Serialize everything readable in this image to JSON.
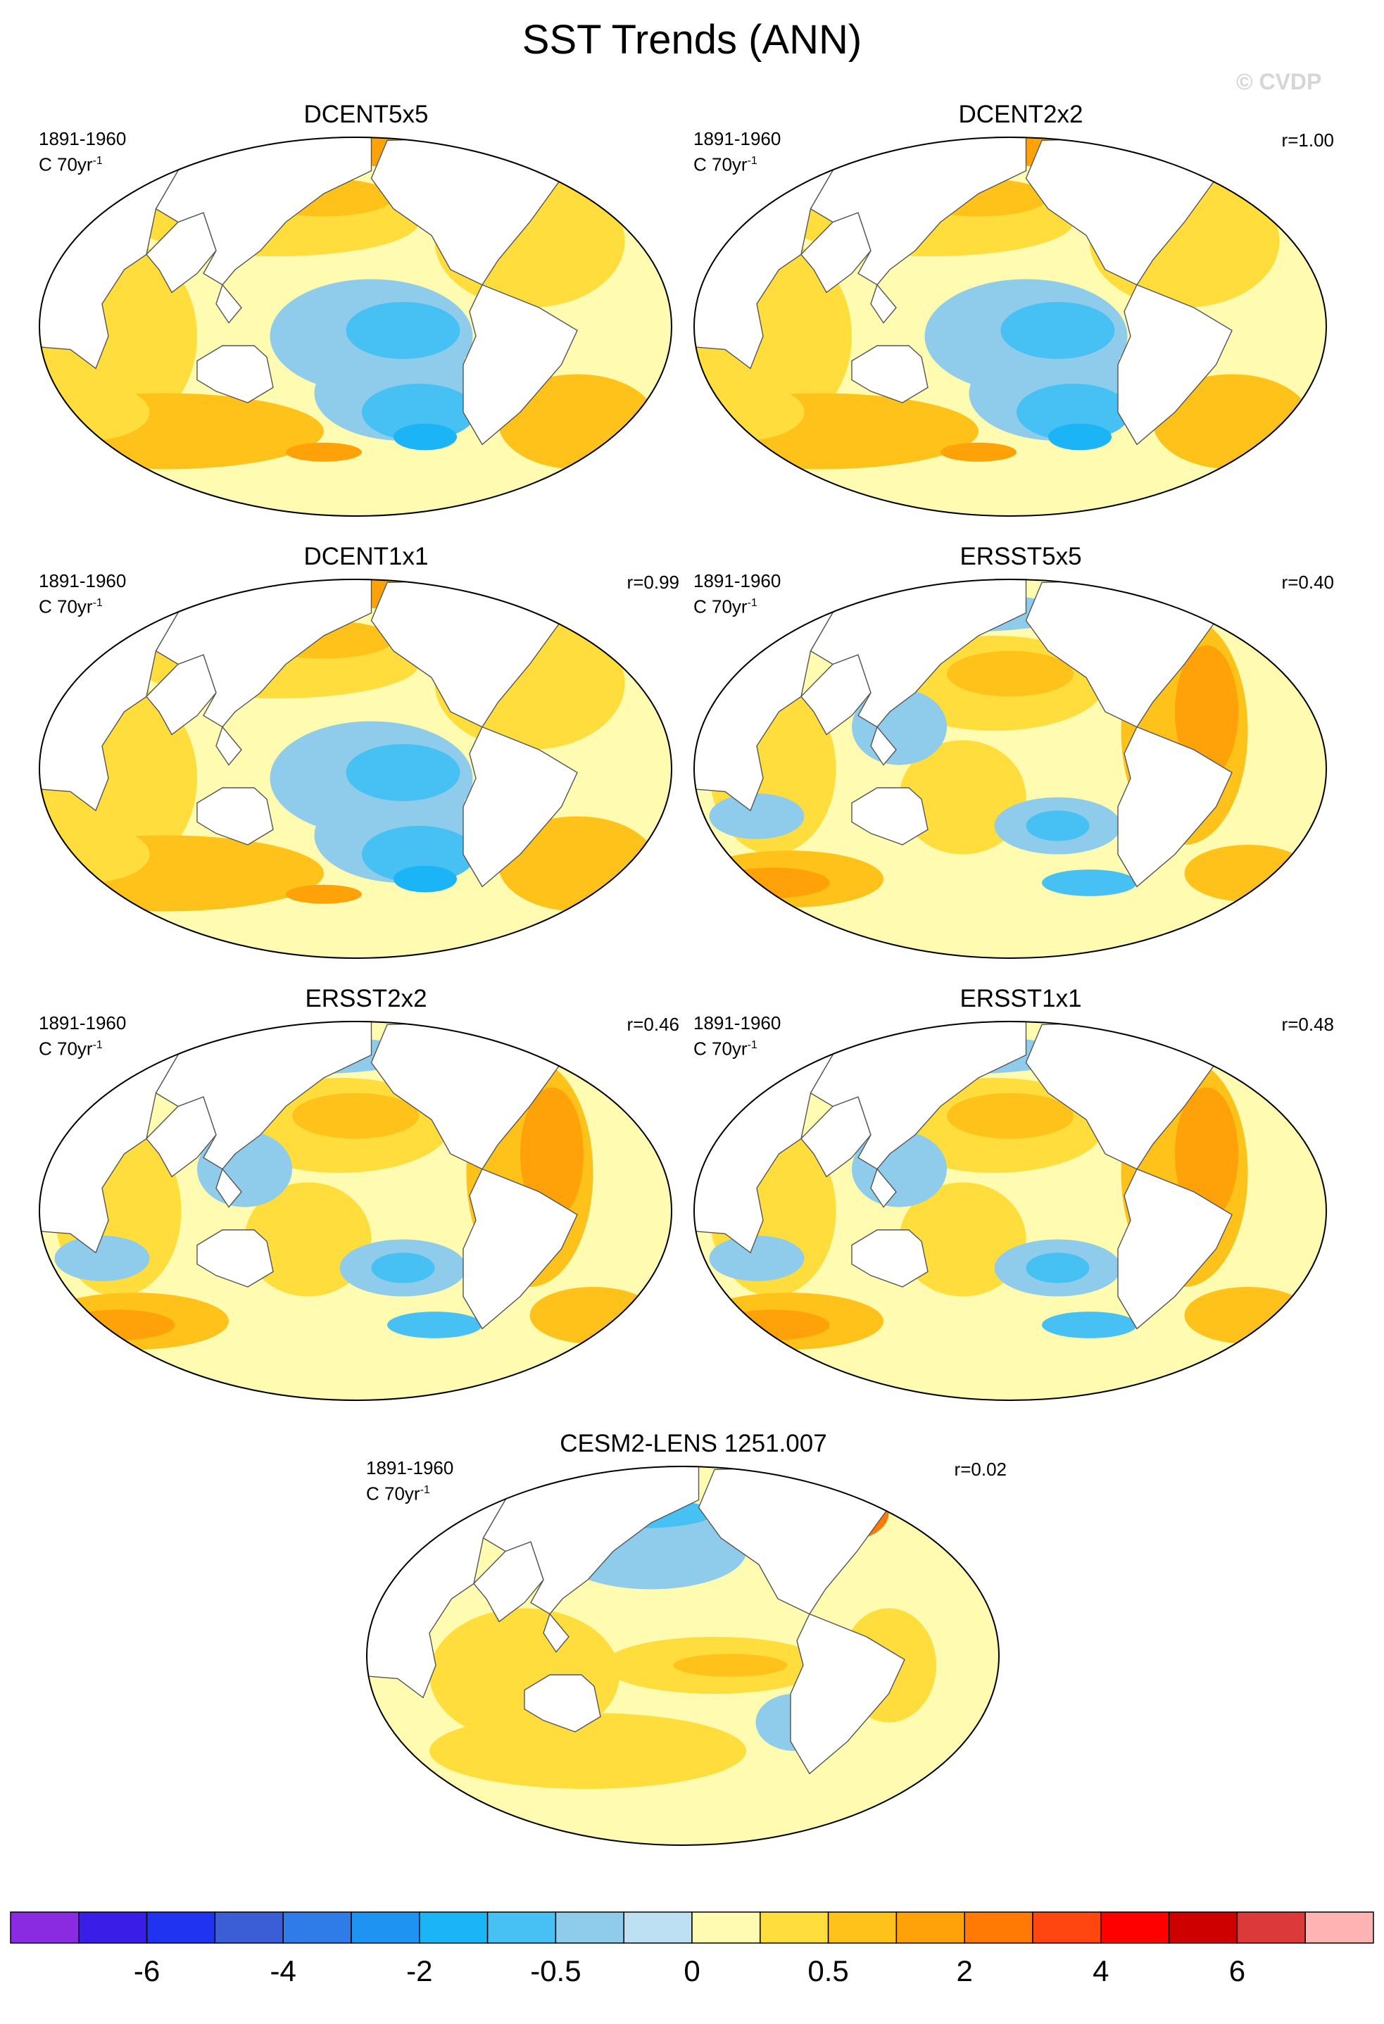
{
  "figure": {
    "title": "SST Trends (ANN)",
    "watermark": "© CVDP"
  },
  "chart_data": {
    "type": "heatmap",
    "title": "SST Trends (ANN)",
    "projection": "Robinson global map",
    "variable": "SST trend",
    "units": "C 70yr-1",
    "panels": [
      {
        "name": "DCENT5x5",
        "period": "1891-1960",
        "units_text": "C 70yr",
        "units_exp": "-1",
        "r": ""
      },
      {
        "name": "DCENT2x2",
        "period": "1891-1960",
        "units_text": "C 70yr",
        "units_exp": "-1",
        "r": "r=1.00"
      },
      {
        "name": "DCENT1x1",
        "period": "1891-1960",
        "units_text": "C 70yr",
        "units_exp": "-1",
        "r": "r=0.99"
      },
      {
        "name": "ERSST5x5",
        "period": "1891-1960",
        "units_text": "C 70yr",
        "units_exp": "-1",
        "r": "r=0.40"
      },
      {
        "name": "ERSST2x2",
        "period": "1891-1960",
        "units_text": "C 70yr",
        "units_exp": "-1",
        "r": "r=0.46"
      },
      {
        "name": "ERSST1x1",
        "period": "1891-1960",
        "units_text": "C 70yr",
        "units_exp": "-1",
        "r": "r=0.48"
      },
      {
        "name": "CESM2-LENS 1251.007",
        "period": "1891-1960",
        "units_text": "C 70yr",
        "units_exp": "-1",
        "r": "r=0.02"
      }
    ],
    "colorbar": {
      "colors": [
        "#8a2be2",
        "#3a1ee8",
        "#1f33f0",
        "#3b5ed6",
        "#2f7be8",
        "#1e93f2",
        "#1bb4f7",
        "#47c1f3",
        "#8fcceb",
        "#bde0f3",
        "#fffbb0",
        "#ffdd3c",
        "#ffc21a",
        "#ffa20a",
        "#ff7a05",
        "#ff4610",
        "#ff0000",
        "#cf0000",
        "#dc3a3a",
        "#ffb3b3"
      ],
      "labels": [
        "-6",
        "-4",
        "-2",
        "-0.5",
        "0",
        "0.5",
        "2",
        "4",
        "6"
      ],
      "label_boundaries": [
        2,
        4,
        6,
        8,
        10,
        12,
        14,
        16,
        18
      ]
    }
  }
}
